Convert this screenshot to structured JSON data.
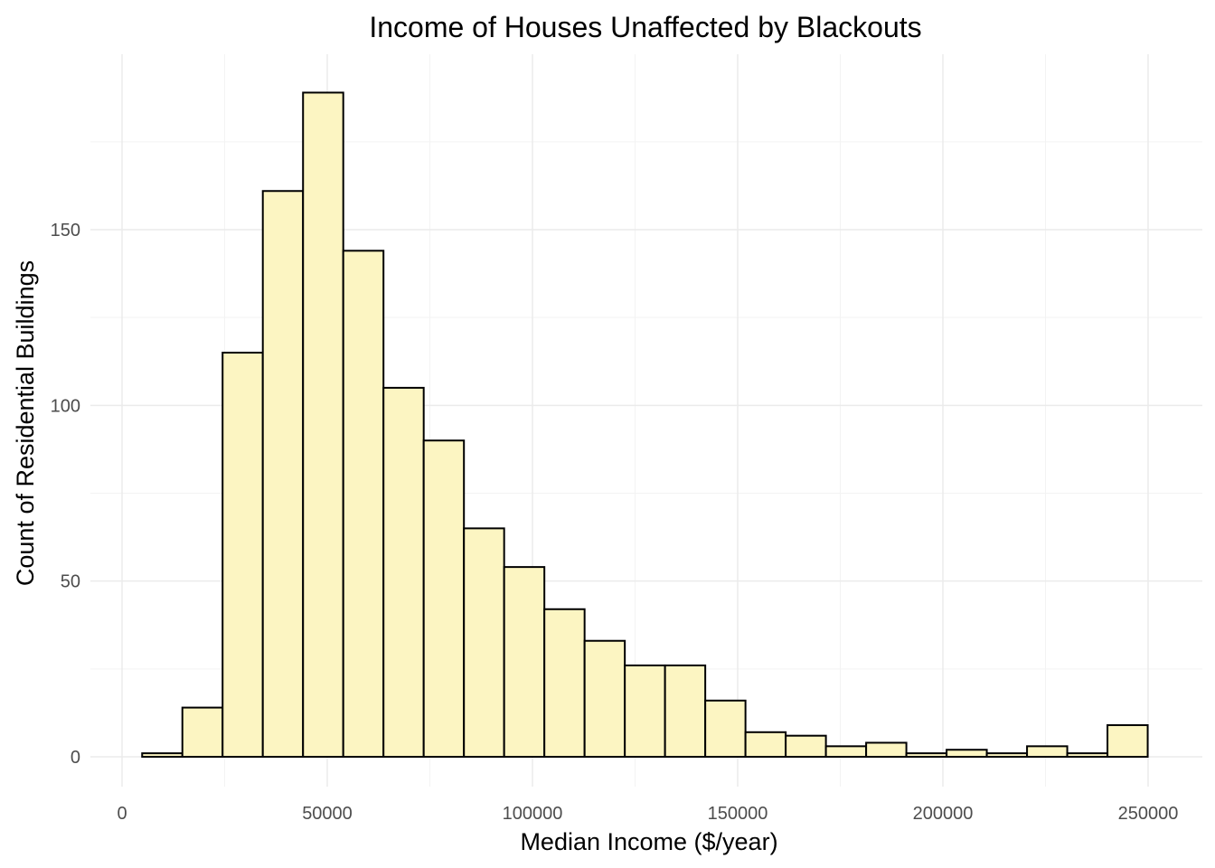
{
  "chart_data": {
    "type": "bar",
    "title": "Income of Houses Unaffected by Blackouts",
    "xlabel": "Median Income ($/year)",
    "ylabel": "Count of Residential Buildings",
    "xlim": [
      0,
      250000
    ],
    "ylim": [
      0,
      189
    ],
    "grid": true,
    "x_ticks": [
      0,
      50000,
      100000,
      150000,
      200000,
      250000
    ],
    "x_tick_labels": [
      "0",
      "50000",
      "100000",
      "150000",
      "200000",
      "250000"
    ],
    "y_ticks": [
      0,
      50,
      100,
      150
    ],
    "y_tick_labels": [
      "0",
      "50",
      "100",
      "150"
    ],
    "bin_width": 9800,
    "bin_starts": [
      4900,
      14700,
      24500,
      34300,
      44100,
      53900,
      63700,
      73500,
      83300,
      93100,
      102900,
      112700,
      122500,
      132300,
      142100,
      151900,
      161700,
      171500,
      181300,
      191100,
      200900,
      210700,
      220500,
      230300,
      240100
    ],
    "values": [
      1,
      14,
      115,
      161,
      189,
      144,
      105,
      90,
      65,
      54,
      42,
      33,
      26,
      26,
      16,
      7,
      6,
      3,
      4,
      1,
      2,
      1,
      3,
      1,
      9
    ],
    "fill_color": "#fcf5c2",
    "edge_color": "#000000"
  }
}
